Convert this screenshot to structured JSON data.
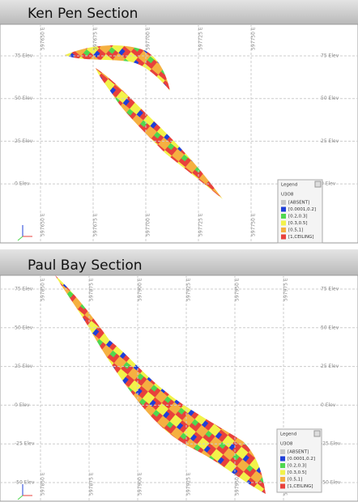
{
  "sections": [
    {
      "title": "Ken Pen Section",
      "elevation_labels": [
        "75 Elev",
        "50 Elev",
        "25 Elev",
        "0 Elev"
      ],
      "easting_labels": [
        "597650 E",
        "597675 E",
        "597700 E",
        "597725 E",
        "597750 E"
      ],
      "legend": {
        "title": "Legend",
        "variable": "U3O8",
        "entries": [
          {
            "label": "[ABSENT]",
            "color": "#c8c8c8"
          },
          {
            "label": "[0.0001,0.2]",
            "color": "#1f3fd8"
          },
          {
            "label": "[0.2,0.3]",
            "color": "#4fd84f"
          },
          {
            "label": "[0.3,0.5]",
            "color": "#f2f24a"
          },
          {
            "label": "[0.5,1]",
            "color": "#f5b041"
          },
          {
            "label": "[1,CEILING]",
            "color": "#e8413c"
          }
        ]
      }
    },
    {
      "title": "Paul Bay Section",
      "elevation_labels": [
        "75 Elev",
        "50 Elev",
        "25 Elev",
        "0 Elev",
        "-25 Elev",
        "-50 Elev"
      ],
      "easting_labels": [
        "597850 E",
        "597875 E",
        "597900 E",
        "597925 E",
        "597950 E",
        "597975 E"
      ],
      "legend": {
        "title": "Legend",
        "variable": "U3O8",
        "entries": [
          {
            "label": "[ABSENT]",
            "color": "#c8c8c8"
          },
          {
            "label": "[0.0001,0.2]",
            "color": "#1f3fd8"
          },
          {
            "label": "[0.2,0.3]",
            "color": "#4fd84f"
          },
          {
            "label": "[0.3,0.5]",
            "color": "#f2f24a"
          },
          {
            "label": "[0.5,1]",
            "color": "#f5b041"
          },
          {
            "label": "[1,CEILING]",
            "color": "#e8413c"
          }
        ]
      }
    }
  ]
}
